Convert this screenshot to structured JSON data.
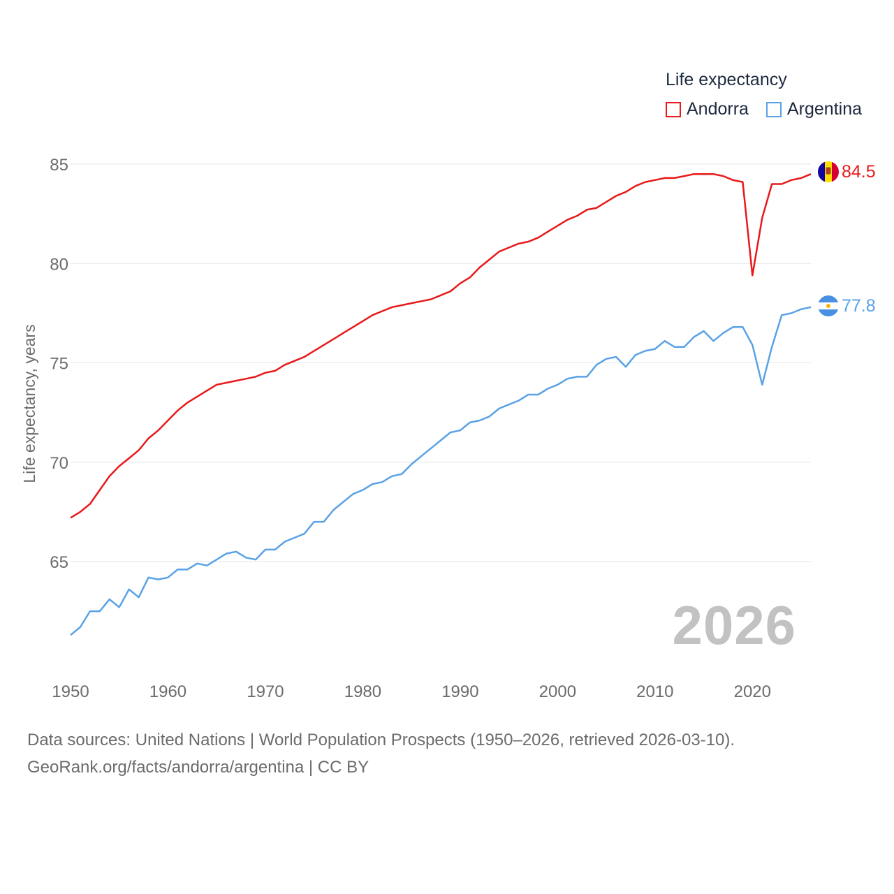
{
  "legend": {
    "title": "Life expectancy",
    "items": [
      {
        "label": "Andorra",
        "color": "#e8191a"
      },
      {
        "label": "Argentina",
        "color": "#5aa2e6"
      }
    ]
  },
  "current_year": "2026",
  "source": {
    "line1": "Data sources: United Nations | World Population Prospects (1950–2026, retrieved 2026-03-10).",
    "line2": "GeoRank.org/facts/andorra/argentina | CC BY"
  },
  "chart_data": {
    "type": "line",
    "title": "Life expectancy",
    "xlabel": "",
    "ylabel": "Life expectancy, years",
    "xlim": [
      1950,
      2026
    ],
    "ylim": [
      61,
      86.5
    ],
    "x_ticks": [
      1950,
      1960,
      1970,
      1980,
      1990,
      2000,
      2010,
      2020
    ],
    "y_ticks": [
      65,
      70,
      75,
      80,
      85
    ],
    "grid": true,
    "legend_position": "top-right",
    "x": [
      1950,
      1951,
      1952,
      1953,
      1954,
      1955,
      1956,
      1957,
      1958,
      1959,
      1960,
      1961,
      1962,
      1963,
      1964,
      1965,
      1966,
      1967,
      1968,
      1969,
      1970,
      1971,
      1972,
      1973,
      1974,
      1975,
      1976,
      1977,
      1978,
      1979,
      1980,
      1981,
      1982,
      1983,
      1984,
      1985,
      1986,
      1987,
      1988,
      1989,
      1990,
      1991,
      1992,
      1993,
      1994,
      1995,
      1996,
      1997,
      1998,
      1999,
      2000,
      2001,
      2002,
      2003,
      2004,
      2005,
      2006,
      2007,
      2008,
      2009,
      2010,
      2011,
      2012,
      2013,
      2014,
      2015,
      2016,
      2017,
      2018,
      2019,
      2020,
      2021,
      2022,
      2023,
      2024,
      2025,
      2026
    ],
    "series": [
      {
        "name": "Andorra",
        "color": "#e8191a",
        "end_label": "84.5",
        "values": [
          67.2,
          67.5,
          67.9,
          68.6,
          69.3,
          69.8,
          70.2,
          70.6,
          71.2,
          71.6,
          72.1,
          72.6,
          73.0,
          73.3,
          73.6,
          73.9,
          74.0,
          74.1,
          74.2,
          74.3,
          74.5,
          74.6,
          74.9,
          75.1,
          75.3,
          75.6,
          75.9,
          76.2,
          76.5,
          76.8,
          77.1,
          77.4,
          77.6,
          77.8,
          77.9,
          78.0,
          78.1,
          78.2,
          78.4,
          78.6,
          79.0,
          79.3,
          79.8,
          80.2,
          80.6,
          80.8,
          81.0,
          81.1,
          81.3,
          81.6,
          81.9,
          82.2,
          82.4,
          82.7,
          82.8,
          83.1,
          83.4,
          83.6,
          83.9,
          84.1,
          84.2,
          84.3,
          84.3,
          84.4,
          84.5,
          84.5,
          84.5,
          84.4,
          84.2,
          84.1,
          79.4,
          82.3,
          84.0,
          84.0,
          84.2,
          84.3,
          84.5
        ]
      },
      {
        "name": "Argentina",
        "color": "#5aa2e6",
        "end_label": "77.8",
        "values": [
          61.3,
          61.7,
          62.5,
          62.5,
          63.1,
          62.7,
          63.6,
          63.2,
          64.2,
          64.1,
          64.2,
          64.6,
          64.6,
          64.9,
          64.8,
          65.1,
          65.4,
          65.5,
          65.2,
          65.1,
          65.6,
          65.6,
          66.0,
          66.2,
          66.4,
          67.0,
          67.0,
          67.6,
          68.0,
          68.4,
          68.6,
          68.9,
          69.0,
          69.3,
          69.4,
          69.9,
          70.3,
          70.7,
          71.1,
          71.5,
          71.6,
          72.0,
          72.1,
          72.3,
          72.7,
          72.9,
          73.1,
          73.4,
          73.4,
          73.7,
          73.9,
          74.2,
          74.3,
          74.3,
          74.9,
          75.2,
          75.3,
          74.8,
          75.4,
          75.6,
          75.7,
          76.1,
          75.8,
          75.8,
          76.3,
          76.6,
          76.1,
          76.5,
          76.8,
          76.8,
          75.9,
          73.9,
          75.8,
          77.4,
          77.5,
          77.7,
          77.8
        ]
      }
    ]
  }
}
